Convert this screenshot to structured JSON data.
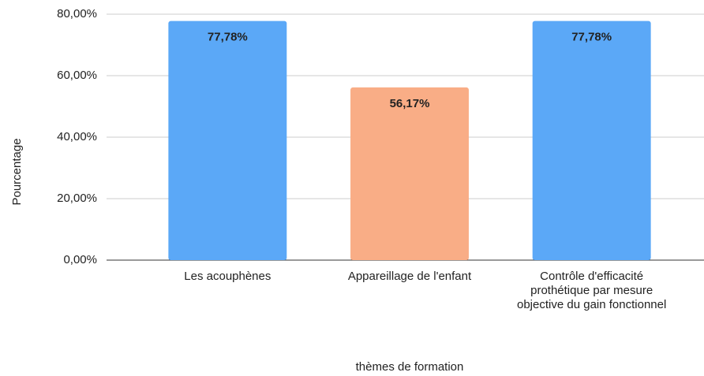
{
  "chart_data": {
    "type": "bar",
    "categories": [
      "Les acouphènes",
      "Appareillage de l'enfant",
      "Contrôle d'efficacité prothétique par mesure objective du gain fonctionnel"
    ],
    "values": [
      77.78,
      56.17,
      77.78
    ],
    "value_labels": [
      "77,78%",
      "56,17%",
      "77,78%"
    ],
    "colors": [
      "#5ba8f7",
      "#f9ad86",
      "#5ba8f7"
    ],
    "ylim": [
      0,
      80
    ],
    "yticks": [
      {
        "value": 0,
        "label": "0,00%"
      },
      {
        "value": 20,
        "label": "20,00%"
      },
      {
        "value": 40,
        "label": "40,00%"
      },
      {
        "value": 60,
        "label": "60,00%"
      },
      {
        "value": 80,
        "label": "80,00%"
      }
    ],
    "y_label": "Pourcentage",
    "x_label": "thèmes de formation",
    "grid": true
  }
}
